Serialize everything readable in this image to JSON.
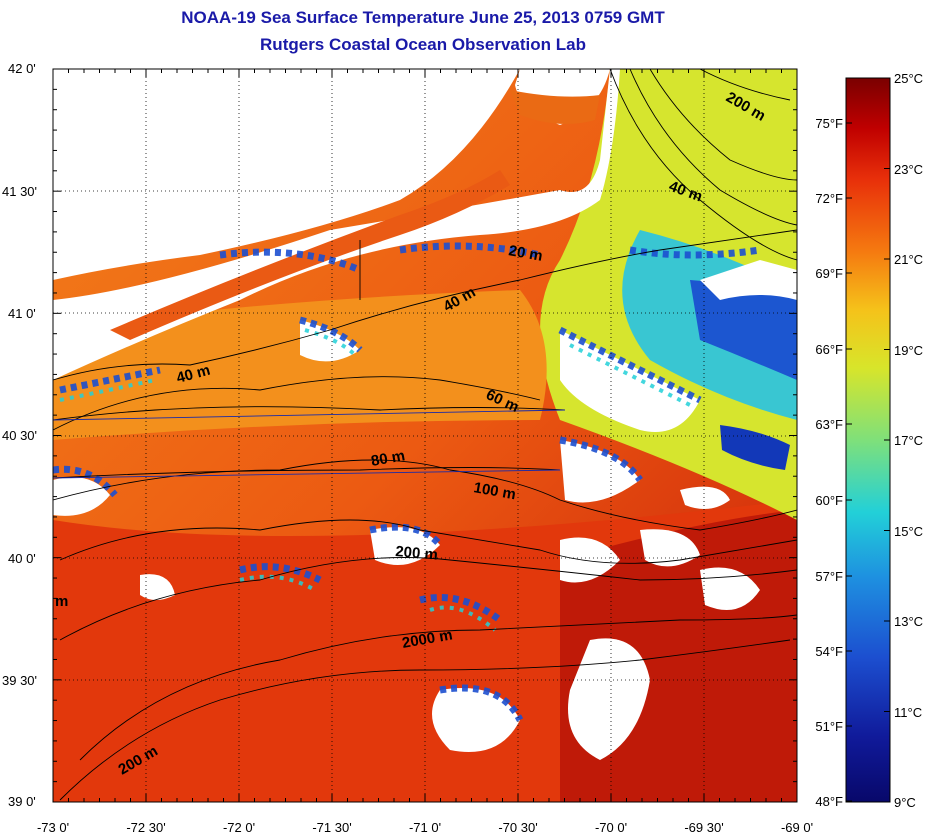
{
  "title_line1": "NOAA-19 Sea Surface Temperature June 25, 2013 0759 GMT",
  "title_line2": "Rutgers Coastal Ocean Observation Lab",
  "lat_ticks": [
    "42 0'",
    "41 30'",
    "41 0'",
    "40 30'",
    "40 0'",
    "39 30'",
    "39 0'"
  ],
  "lon_ticks": [
    "-73 0'",
    "-72 30'",
    "-72 0'",
    "-71 30'",
    "-71 0'",
    "-70 30'",
    "-70 0'",
    "-69 30'",
    "-69 0'"
  ],
  "colorbar": {
    "celsius_labels": [
      "25°C",
      "23°C",
      "21°C",
      "19°C",
      "17°C",
      "15°C",
      "13°C",
      "11°C",
      "9°C"
    ],
    "fahrenheit_labels": [
      "75°F",
      "72°F",
      "69°F",
      "66°F",
      "63°F",
      "60°F",
      "57°F",
      "54°F",
      "51°F",
      "48°F"
    ],
    "colors": [
      "#7a0000",
      "#c00000",
      "#e8300a",
      "#f57a10",
      "#f5c21a",
      "#d8e52a",
      "#7fe07a",
      "#22d0d8",
      "#1e90e0",
      "#1c4fd0",
      "#101a9a",
      "#08086a"
    ]
  },
  "contour_labels": [
    "200 m",
    "40 m",
    "20 m",
    "40 m",
    "40 m",
    "60 m",
    "80 m",
    "100 m",
    "200 m",
    "2000 m",
    "200 m",
    "m"
  ],
  "colors": {
    "title": "#1a1aa8",
    "land": "#ffffff",
    "cloud": "#ffffff",
    "warm_water": "#e8400e",
    "shelf_water": "#f08a1a"
  }
}
